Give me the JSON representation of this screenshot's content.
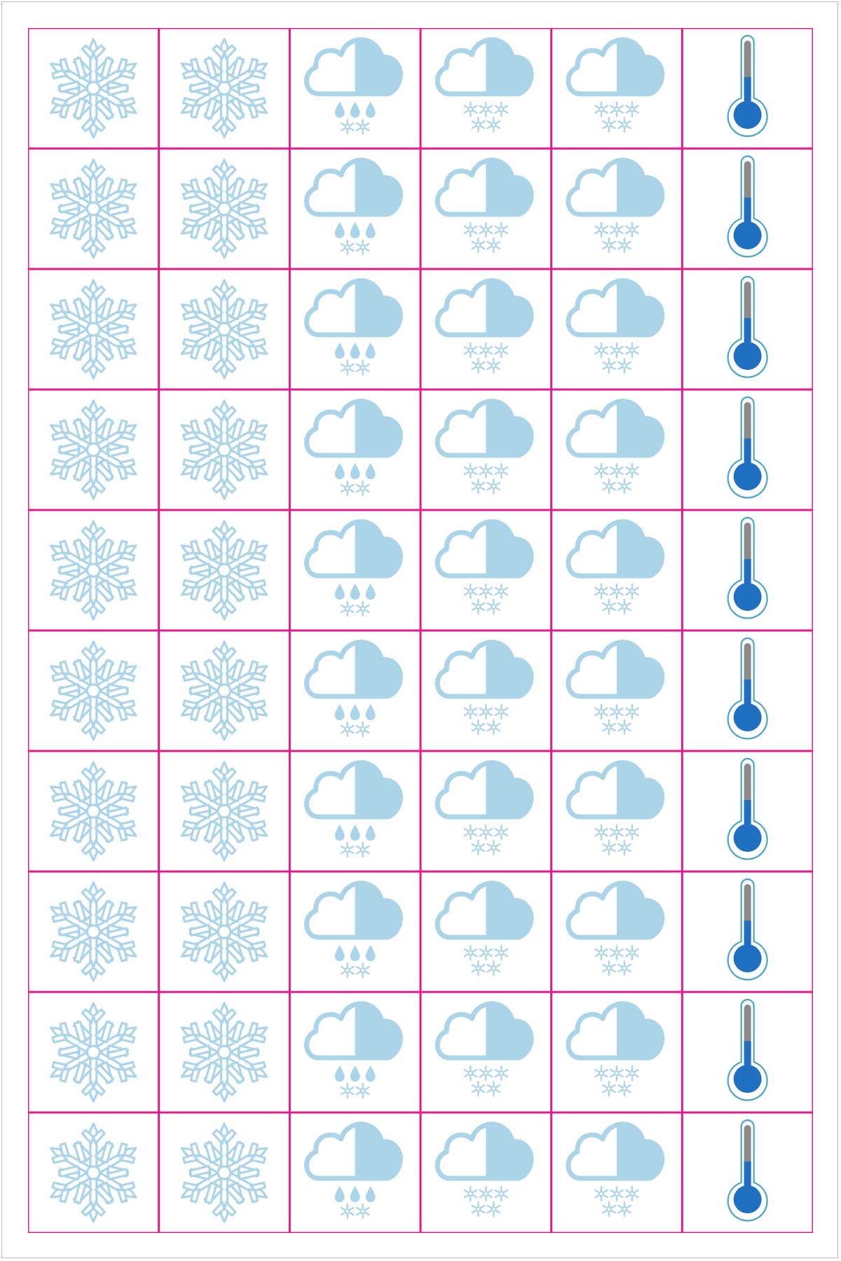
{
  "sheet": {
    "rows": 10,
    "columns": [
      {
        "icon": "snowflake-icon"
      },
      {
        "icon": "snowflake-icon"
      },
      {
        "icon": "cloud-sleet-icon"
      },
      {
        "icon": "cloud-snow-icon"
      },
      {
        "icon": "cloud-snow-icon"
      },
      {
        "icon": "thermometer-cold-icon"
      }
    ]
  },
  "colors": {
    "grid_line": "#e0198c",
    "icon_light_blue": "#acd4e8",
    "thermometer_blue": "#1f70c1",
    "thermometer_outline": "#4aa3c9",
    "thermometer_tube": "#8a8a8a",
    "background": "#ffffff"
  }
}
